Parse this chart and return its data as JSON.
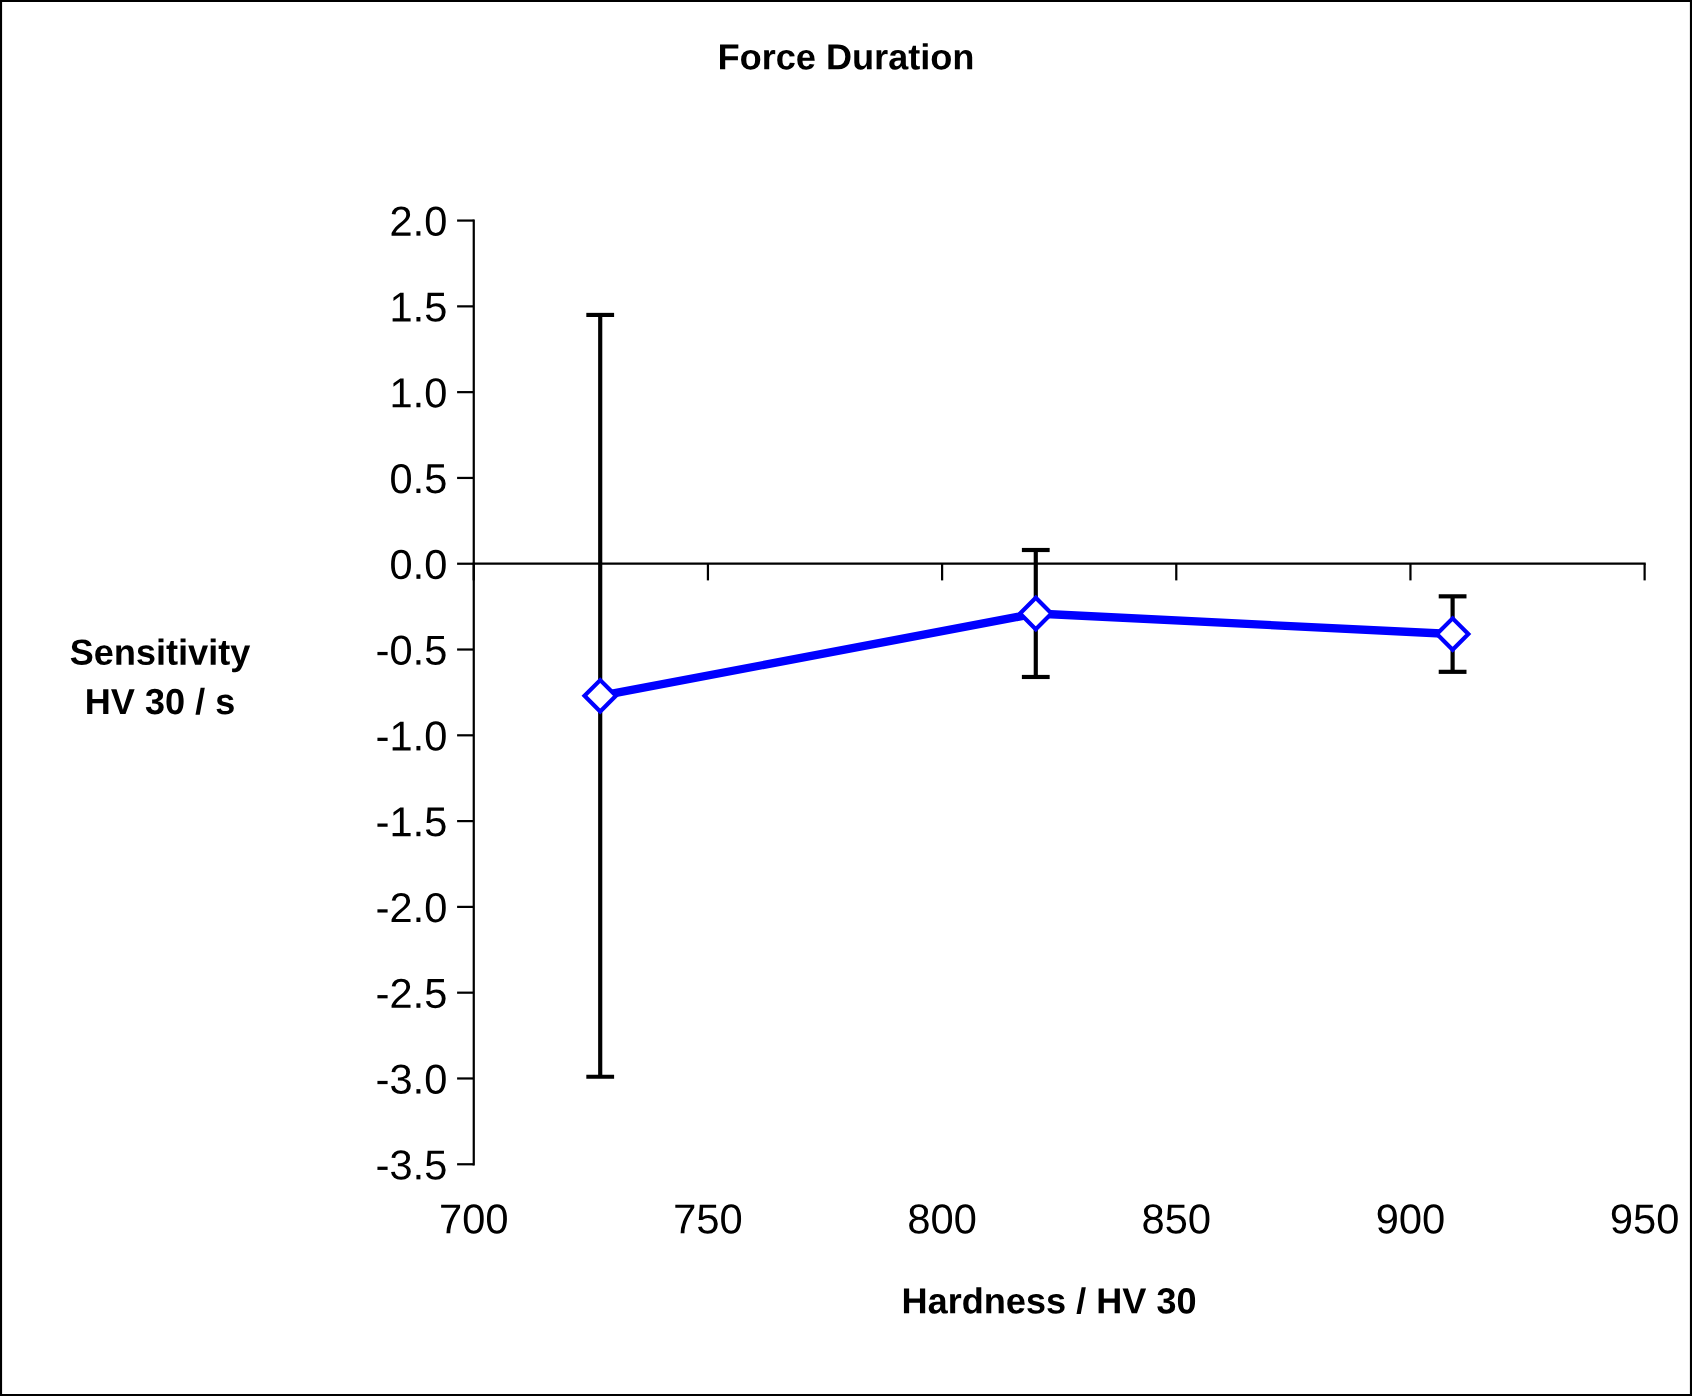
{
  "chart_data": {
    "type": "line",
    "title": "Force Duration",
    "xlabel": "Hardness / HV 30",
    "ylabel": "Sensitivity\nHV 30 / s",
    "x": [
      727,
      820,
      909
    ],
    "series": [
      {
        "color": "#0000ff",
        "values": [
          -0.77,
          -0.29,
          -0.41
        ],
        "errors": [
          2.22,
          0.37,
          0.22
        ]
      }
    ],
    "xlim": [
      700,
      950
    ],
    "xticks": [
      700,
      750,
      800,
      850,
      900,
      950
    ],
    "ylim": [
      -3.5,
      2.0
    ],
    "yticks": [
      -3.5,
      {
        "value": -3,
        "label": "-3.0"
      },
      -2.5,
      {
        "value": -2,
        "label": "-2.0"
      },
      -1.5,
      {
        "value": -1,
        "label": "-1.0"
      },
      -0.5,
      {
        "value": 0,
        "label": "0.0"
      },
      0.5,
      {
        "value": 1,
        "label": "1.0"
      },
      1.5,
      {
        "value": 2,
        "label": "2.0"
      }
    ],
    "marker": "diamond",
    "line_style": "solid"
  }
}
